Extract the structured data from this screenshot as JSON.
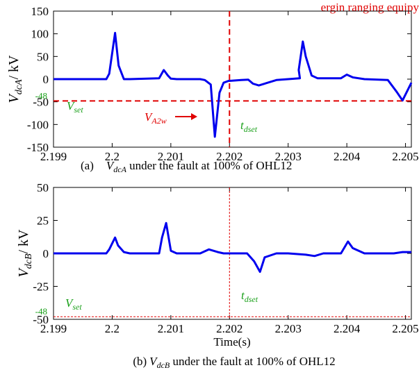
{
  "top_fragment": "ergin ranging equipy",
  "chart_data": [
    {
      "type": "line",
      "ylabel": {
        "main": "V",
        "sub": "dcA",
        "unit": "/ kV"
      },
      "xlim": [
        2.199,
        2.2051
      ],
      "ylim": [
        -150,
        150
      ],
      "xticks": [
        2.199,
        2.2,
        2.201,
        2.202,
        2.203,
        2.204,
        2.205
      ],
      "xtick_labels": [
        "2.199",
        "2.2",
        "2.201",
        "2.202",
        "2.203",
        "2.204",
        "2.205"
      ],
      "yticks": [
        150,
        100,
        50,
        0,
        -50,
        -100,
        -150
      ],
      "ytick_labels": [
        "150",
        "100",
        "50",
        "0",
        "-50",
        "-100",
        "-150"
      ],
      "threshold": {
        "value": -48,
        "label": "-48"
      },
      "vline_x": 2.202,
      "annotations": {
        "vset": {
          "main": "V",
          "sub": "set"
        },
        "tdset": {
          "main": "t",
          "sub": "dset"
        },
        "va2w": {
          "main": "V",
          "sub": "A2w"
        }
      },
      "caption": {
        "prefix": "(a)",
        "var_main": "V",
        "var_sub": "dcA",
        "rest": " under the fault at 100% of OHL12"
      },
      "series": [
        {
          "color": "#0000ee",
          "x": [
            2.199,
            2.1999,
            2.19995,
            2.20005,
            2.20011,
            2.2002,
            2.2003,
            2.2008,
            2.20088,
            2.20095,
            2.201,
            2.2011,
            2.2015,
            2.20158,
            2.20168,
            2.20175,
            2.20183,
            2.2019,
            2.20198,
            2.2022,
            2.20232,
            2.2024,
            2.2025,
            2.2028,
            2.2032,
            2.20318,
            2.20325,
            2.2033,
            2.2034,
            2.2035,
            2.2039,
            2.204,
            2.2041,
            2.2043,
            2.2047,
            2.20485,
            2.20495,
            2.2051
          ],
          "y": [
            0,
            0,
            12,
            102,
            30,
            0,
            0,
            2,
            20,
            8,
            1,
            0,
            0,
            -2,
            -12,
            -127,
            -30,
            -8,
            -4,
            -2,
            -1,
            -10,
            -14,
            -2,
            2,
            20,
            83,
            50,
            8,
            2,
            2,
            10,
            4,
            0,
            -2,
            -28,
            -47,
            -8
          ]
        }
      ]
    },
    {
      "type": "line",
      "ylabel": {
        "main": "V",
        "sub": "dcB",
        "unit": "/ kV"
      },
      "xlabel": "Time(s)",
      "xlim": [
        2.199,
        2.2051
      ],
      "ylim": [
        -50,
        50
      ],
      "xticks": [
        2.199,
        2.2,
        2.201,
        2.202,
        2.203,
        2.204,
        2.205
      ],
      "xtick_labels": [
        "2.199",
        "2.2",
        "2.201",
        "2.202",
        "2.203",
        "2.204",
        "2.205"
      ],
      "yticks": [
        50,
        25,
        0,
        -25,
        -50
      ],
      "ytick_labels": [
        "50",
        "25",
        "0",
        "-25",
        "-50"
      ],
      "threshold": {
        "value": -48,
        "label": "-48"
      },
      "vline_x": 2.202,
      "annotations": {
        "vset": {
          "main": "V",
          "sub": "set"
        },
        "tdset": {
          "main": "t",
          "sub": "dset"
        }
      },
      "caption": {
        "prefix": "(b)",
        "var_main": "V",
        "var_sub": "dcB",
        "rest": " under the fault at 100% of OHL12"
      },
      "series": [
        {
          "color": "#0000ee",
          "x": [
            2.199,
            2.1999,
            2.19995,
            2.20005,
            2.2001,
            2.2002,
            2.2003,
            2.2008,
            2.20085,
            2.20092,
            2.201,
            2.2011,
            2.2015,
            2.20165,
            2.2018,
            2.2019,
            2.2023,
            2.20242,
            2.20252,
            2.2026,
            2.2028,
            2.203,
            2.2033,
            2.20345,
            2.2036,
            2.2039,
            2.20402,
            2.2041,
            2.2043,
            2.2048,
            2.20495,
            2.2051
          ],
          "y": [
            0,
            0,
            3,
            12,
            6,
            1,
            0,
            0,
            12,
            23,
            2,
            0,
            0,
            3,
            1,
            0,
            0,
            -6,
            -14,
            -3,
            0,
            0,
            -1,
            -2,
            0,
            0,
            9,
            4,
            0,
            0,
            1,
            1
          ]
        }
      ]
    }
  ]
}
